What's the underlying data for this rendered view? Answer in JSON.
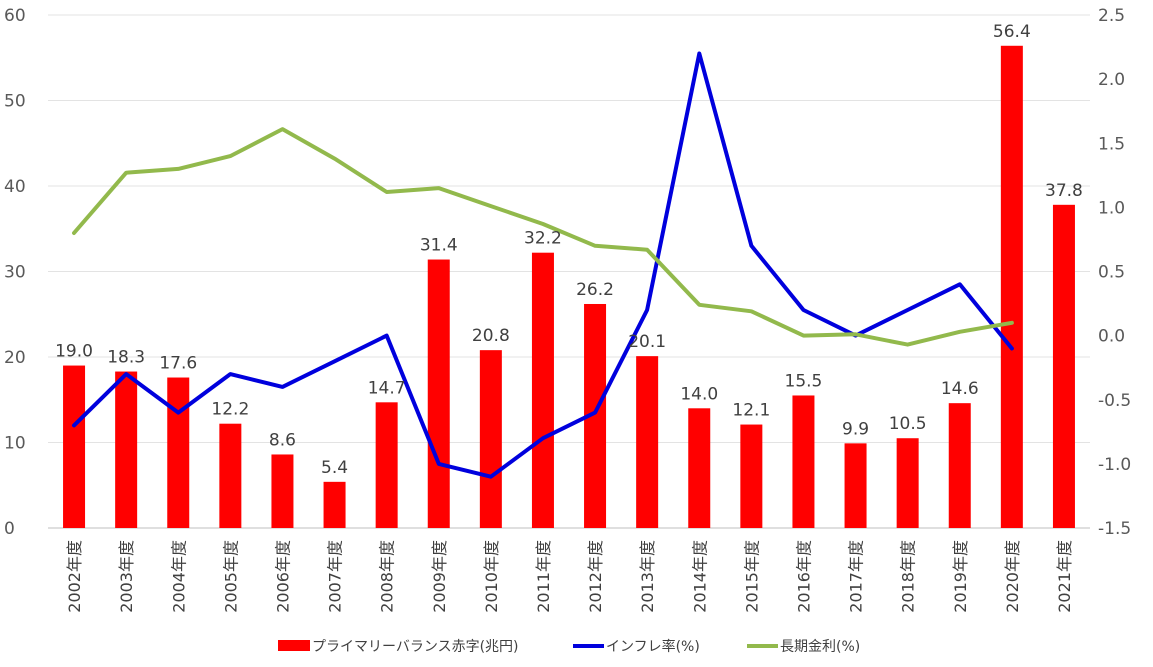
{
  "chart_data": {
    "type": "bar",
    "categories": [
      "2002年度",
      "2003年度",
      "2004年度",
      "2005年度",
      "2006年度",
      "2007年度",
      "2008年度",
      "2009年度",
      "2010年度",
      "2011年度",
      "2012年度",
      "2013年度",
      "2014年度",
      "2015年度",
      "2016年度",
      "2017年度",
      "2018年度",
      "2019年度",
      "2020年度",
      "2021年度"
    ],
    "y_left": {
      "min": 0,
      "max": 60,
      "ticks": [
        "0",
        "10",
        "20",
        "30",
        "40",
        "50",
        "60"
      ]
    },
    "y_right": {
      "min": -1.5,
      "max": 2.5,
      "ticks": [
        "-1.5",
        "-1.0",
        "-0.5",
        "0.0",
        "0.5",
        "1.0",
        "1.5",
        "2.0",
        "2.5"
      ]
    },
    "grid": true,
    "legend_position": "bottom",
    "series": [
      {
        "name": "プライマリーバランス赤字(兆円)",
        "type": "bar",
        "axis": "left",
        "color": "#ff0000",
        "values": [
          19.0,
          18.3,
          17.6,
          12.2,
          8.6,
          5.4,
          14.7,
          31.4,
          20.8,
          32.2,
          26.2,
          20.1,
          14.0,
          12.1,
          15.5,
          9.9,
          10.5,
          14.6,
          56.4,
          37.8
        ],
        "labels": [
          "19.0",
          "18.3",
          "17.6",
          "12.2",
          "8.6",
          "5.4",
          "14.7",
          "31.4",
          "20.8",
          "32.2",
          "26.2",
          "20.1",
          "14.0",
          "12.1",
          "15.5",
          "9.9",
          "10.5",
          "14.6",
          "56.4",
          "37.8"
        ]
      },
      {
        "name": "インフレ率(%)",
        "type": "line",
        "axis": "right",
        "color": "#0000dd",
        "values": [
          -0.7,
          -0.3,
          -0.6,
          -0.3,
          -0.4,
          -0.2,
          0.0,
          -1.0,
          -1.1,
          -0.8,
          -0.6,
          0.2,
          2.2,
          0.7,
          0.2,
          0.0,
          0.2,
          0.4,
          -0.1,
          null
        ]
      },
      {
        "name": "長期金利(%)",
        "type": "line",
        "axis": "right",
        "color": "#92b94c",
        "values": [
          0.8,
          1.27,
          1.3,
          1.4,
          1.61,
          1.38,
          1.12,
          1.15,
          1.01,
          0.87,
          0.7,
          0.67,
          0.24,
          0.19,
          0.0,
          0.01,
          -0.07,
          0.03,
          0.1,
          null
        ]
      }
    ]
  }
}
